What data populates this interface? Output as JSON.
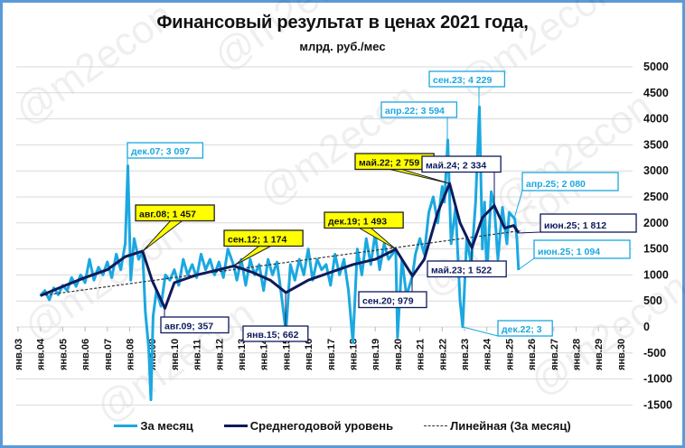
{
  "title": "Финансовый результат в ценах 2021 года,",
  "subtitle": "млрд. руб./мес",
  "watermark": "@m2econ",
  "colors": {
    "monthly": "#1ba8e0",
    "average": "#0d1a5c",
    "trend": "#333333",
    "grid": "#d9d9d9",
    "frame": "#5b9bd5",
    "highlight": "#ffff00"
  },
  "legend": {
    "monthly": "За месяц",
    "average": "Среднегодовой уровень",
    "trend": "Линейная (За месяц)"
  },
  "chart_data": {
    "type": "line",
    "title": "Финансовый результат в ценах 2021 года, млрд. руб./мес",
    "xlabel": "",
    "ylabel": "",
    "ylim": [
      -1500,
      5000
    ],
    "yticks": [
      "5000",
      "4500",
      "4000",
      "3500",
      "3000",
      "2500",
      "2000",
      "1500",
      "1000",
      "500",
      "0",
      "-500",
      "-1000",
      "-1500"
    ],
    "xticks": [
      "янв.03",
      "янв.04",
      "янв.05",
      "янв.06",
      "янв.07",
      "янв.08",
      "янв.09",
      "янв.10",
      "янв.11",
      "янв.12",
      "янв.13",
      "янв.14",
      "янв.15",
      "янв.16",
      "янв.17",
      "янв.18",
      "янв.19",
      "янв.20",
      "янв.21",
      "янв.22",
      "янв.23",
      "янв.24",
      "янв.25",
      "янв.26",
      "янв.27",
      "янв.28",
      "янв.29",
      "янв.30"
    ],
    "grid": true,
    "legend_position": "bottom",
    "series": [
      {
        "name": "За месяц",
        "approx_points": [
          [
            2004.0,
            600
          ],
          [
            2004.2,
            700
          ],
          [
            2004.4,
            520
          ],
          [
            2004.6,
            750
          ],
          [
            2004.8,
            620
          ],
          [
            2005.0,
            800
          ],
          [
            2005.2,
            700
          ],
          [
            2005.4,
            950
          ],
          [
            2005.6,
            780
          ],
          [
            2005.8,
            1000
          ],
          [
            2006.0,
            850
          ],
          [
            2006.2,
            1300
          ],
          [
            2006.4,
            900
          ],
          [
            2006.6,
            1150
          ],
          [
            2006.8,
            1000
          ],
          [
            2007.0,
            1250
          ],
          [
            2007.2,
            950
          ],
          [
            2007.4,
            1400
          ],
          [
            2007.6,
            1100
          ],
          [
            2007.8,
            1600
          ],
          [
            2007.92,
            3097
          ],
          [
            2008.05,
            900
          ],
          [
            2008.2,
            1700
          ],
          [
            2008.4,
            1300
          ],
          [
            2008.58,
            1450
          ],
          [
            2008.7,
            300
          ],
          [
            2008.85,
            -400
          ],
          [
            2008.95,
            -1400
          ],
          [
            2009.05,
            200
          ],
          [
            2009.2,
            700
          ],
          [
            2009.4,
            400
          ],
          [
            2009.6,
            1000
          ],
          [
            2009.8,
            900
          ],
          [
            2010.0,
            1100
          ],
          [
            2010.2,
            800
          ],
          [
            2010.4,
            1300
          ],
          [
            2010.6,
            1000
          ],
          [
            2010.8,
            1200
          ],
          [
            2011.0,
            950
          ],
          [
            2011.2,
            1400
          ],
          [
            2011.4,
            1100
          ],
          [
            2011.6,
            1300
          ],
          [
            2011.8,
            1000
          ],
          [
            2012.0,
            1250
          ],
          [
            2012.2,
            950
          ],
          [
            2012.4,
            1500
          ],
          [
            2012.67,
            1174
          ],
          [
            2012.8,
            900
          ],
          [
            2013.0,
            1300
          ],
          [
            2013.2,
            800
          ],
          [
            2013.4,
            1300
          ],
          [
            2013.6,
            1000
          ],
          [
            2013.8,
            1200
          ],
          [
            2014.0,
            700
          ],
          [
            2014.2,
            1300
          ],
          [
            2014.4,
            1000
          ],
          [
            2014.6,
            1250
          ],
          [
            2014.8,
            600
          ],
          [
            2015.0,
            -100
          ],
          [
            2015.2,
            1200
          ],
          [
            2015.4,
            900
          ],
          [
            2015.6,
            1300
          ],
          [
            2015.8,
            1000
          ],
          [
            2016.0,
            1500
          ],
          [
            2016.2,
            900
          ],
          [
            2016.4,
            1300
          ],
          [
            2016.6,
            1100
          ],
          [
            2016.8,
            1200
          ],
          [
            2017.0,
            800
          ],
          [
            2017.2,
            1400
          ],
          [
            2017.4,
            1000
          ],
          [
            2017.6,
            1300
          ],
          [
            2017.8,
            700
          ],
          [
            2018.0,
            -300
          ],
          [
            2018.2,
            1500
          ],
          [
            2018.4,
            1000
          ],
          [
            2018.6,
            1700
          ],
          [
            2018.8,
            1200
          ],
          [
            2019.0,
            1800
          ],
          [
            2019.2,
            1100
          ],
          [
            2019.4,
            1600
          ],
          [
            2019.6,
            1300
          ],
          [
            2019.92,
            1493
          ],
          [
            2020.0,
            -200
          ],
          [
            2020.2,
            1300
          ],
          [
            2020.4,
            600
          ],
          [
            2020.67,
            979
          ],
          [
            2020.8,
            1400
          ],
          [
            2021.0,
            1700
          ],
          [
            2021.2,
            1400
          ],
          [
            2021.4,
            2200
          ],
          [
            2021.6,
            2500
          ],
          [
            2021.8,
            2000
          ],
          [
            2022.0,
            2700
          ],
          [
            2022.1,
            2400
          ],
          [
            2022.25,
            3594
          ],
          [
            2022.4,
            1600
          ],
          [
            2022.6,
            2300
          ],
          [
            2022.8,
            500
          ],
          [
            2022.92,
            3
          ],
          [
            2023.1,
            1700
          ],
          [
            2023.3,
            1200
          ],
          [
            2023.5,
            2400
          ],
          [
            2023.67,
            4229
          ],
          [
            2023.8,
            1500
          ],
          [
            2023.9,
            2400
          ],
          [
            2024.0,
            1000
          ],
          [
            2024.2,
            2600
          ],
          [
            2024.33,
            2334
          ],
          [
            2024.5,
            1300
          ],
          [
            2024.7,
            2300
          ],
          [
            2024.9,
            1600
          ],
          [
            2025.0,
            2200
          ],
          [
            2025.25,
            2080
          ],
          [
            2025.35,
            1700
          ],
          [
            2025.42,
            1094
          ]
        ]
      },
      {
        "name": "Среднегодовой уровень",
        "approx_points": [
          [
            2004.0,
            600
          ],
          [
            2005.0,
            780
          ],
          [
            2006.0,
            950
          ],
          [
            2007.0,
            1100
          ],
          [
            2007.8,
            1350
          ],
          [
            2008.58,
            1457
          ],
          [
            2009.0,
            900
          ],
          [
            2009.58,
            357
          ],
          [
            2010.0,
            850
          ],
          [
            2011.0,
            1000
          ],
          [
            2012.0,
            1100
          ],
          [
            2012.67,
            1174
          ],
          [
            2013.5,
            1050
          ],
          [
            2014.3,
            900
          ],
          [
            2015.0,
            662
          ],
          [
            2016.0,
            900
          ],
          [
            2017.0,
            1050
          ],
          [
            2018.0,
            1200
          ],
          [
            2019.0,
            1300
          ],
          [
            2019.92,
            1493
          ],
          [
            2020.67,
            979
          ],
          [
            2021.2,
            1300
          ],
          [
            2021.8,
            2200
          ],
          [
            2022.33,
            2759
          ],
          [
            2022.8,
            2000
          ],
          [
            2023.33,
            1522
          ],
          [
            2023.8,
            2100
          ],
          [
            2024.33,
            2334
          ],
          [
            2024.8,
            1900
          ],
          [
            2025.2,
            1950
          ],
          [
            2025.42,
            1812
          ]
        ]
      },
      {
        "name": "Линейная (За месяц)",
        "approx_points": [
          [
            2004.0,
            600
          ],
          [
            2025.5,
            1850
          ]
        ]
      }
    ],
    "annotations": [
      {
        "label": "дек.07; 3 097",
        "series": "За месяц"
      },
      {
        "label": "авг.08; 1 457",
        "series": "Среднегодовой уровень",
        "highlight": true
      },
      {
        "label": "авг.09; 357",
        "series": "Среднегодовой уровень"
      },
      {
        "label": "сен.12; 1 174",
        "series": "Среднегодовой уровень",
        "highlight": true
      },
      {
        "label": "янв.15; 662",
        "series": "Среднегодовой уровень"
      },
      {
        "label": "дек.19; 1 493",
        "series": "Среднегодовой уровень",
        "highlight": true
      },
      {
        "label": "сен.20; 979",
        "series": "Среднегодовой уровень"
      },
      {
        "label": "май.22; 2 759",
        "series": "Среднегодовой уровень",
        "highlight": true
      },
      {
        "label": "апр.22; 3 594",
        "series": "За месяц"
      },
      {
        "label": "сен.23; 4 229",
        "series": "За месяц"
      },
      {
        "label": "май.23; 1 522",
        "series": "Среднегодовой уровень"
      },
      {
        "label": "дек.22; 3",
        "series": "За месяц"
      },
      {
        "label": "май.24; 2 334",
        "series": "Среднегодовой уровень"
      },
      {
        "label": "апр.25; 2 080",
        "series": "За месяц"
      },
      {
        "label": "июн.25; 1 812",
        "series": "Среднегодовой уровень"
      },
      {
        "label": "июн.25; 1 094",
        "series": "За месяц"
      }
    ]
  }
}
